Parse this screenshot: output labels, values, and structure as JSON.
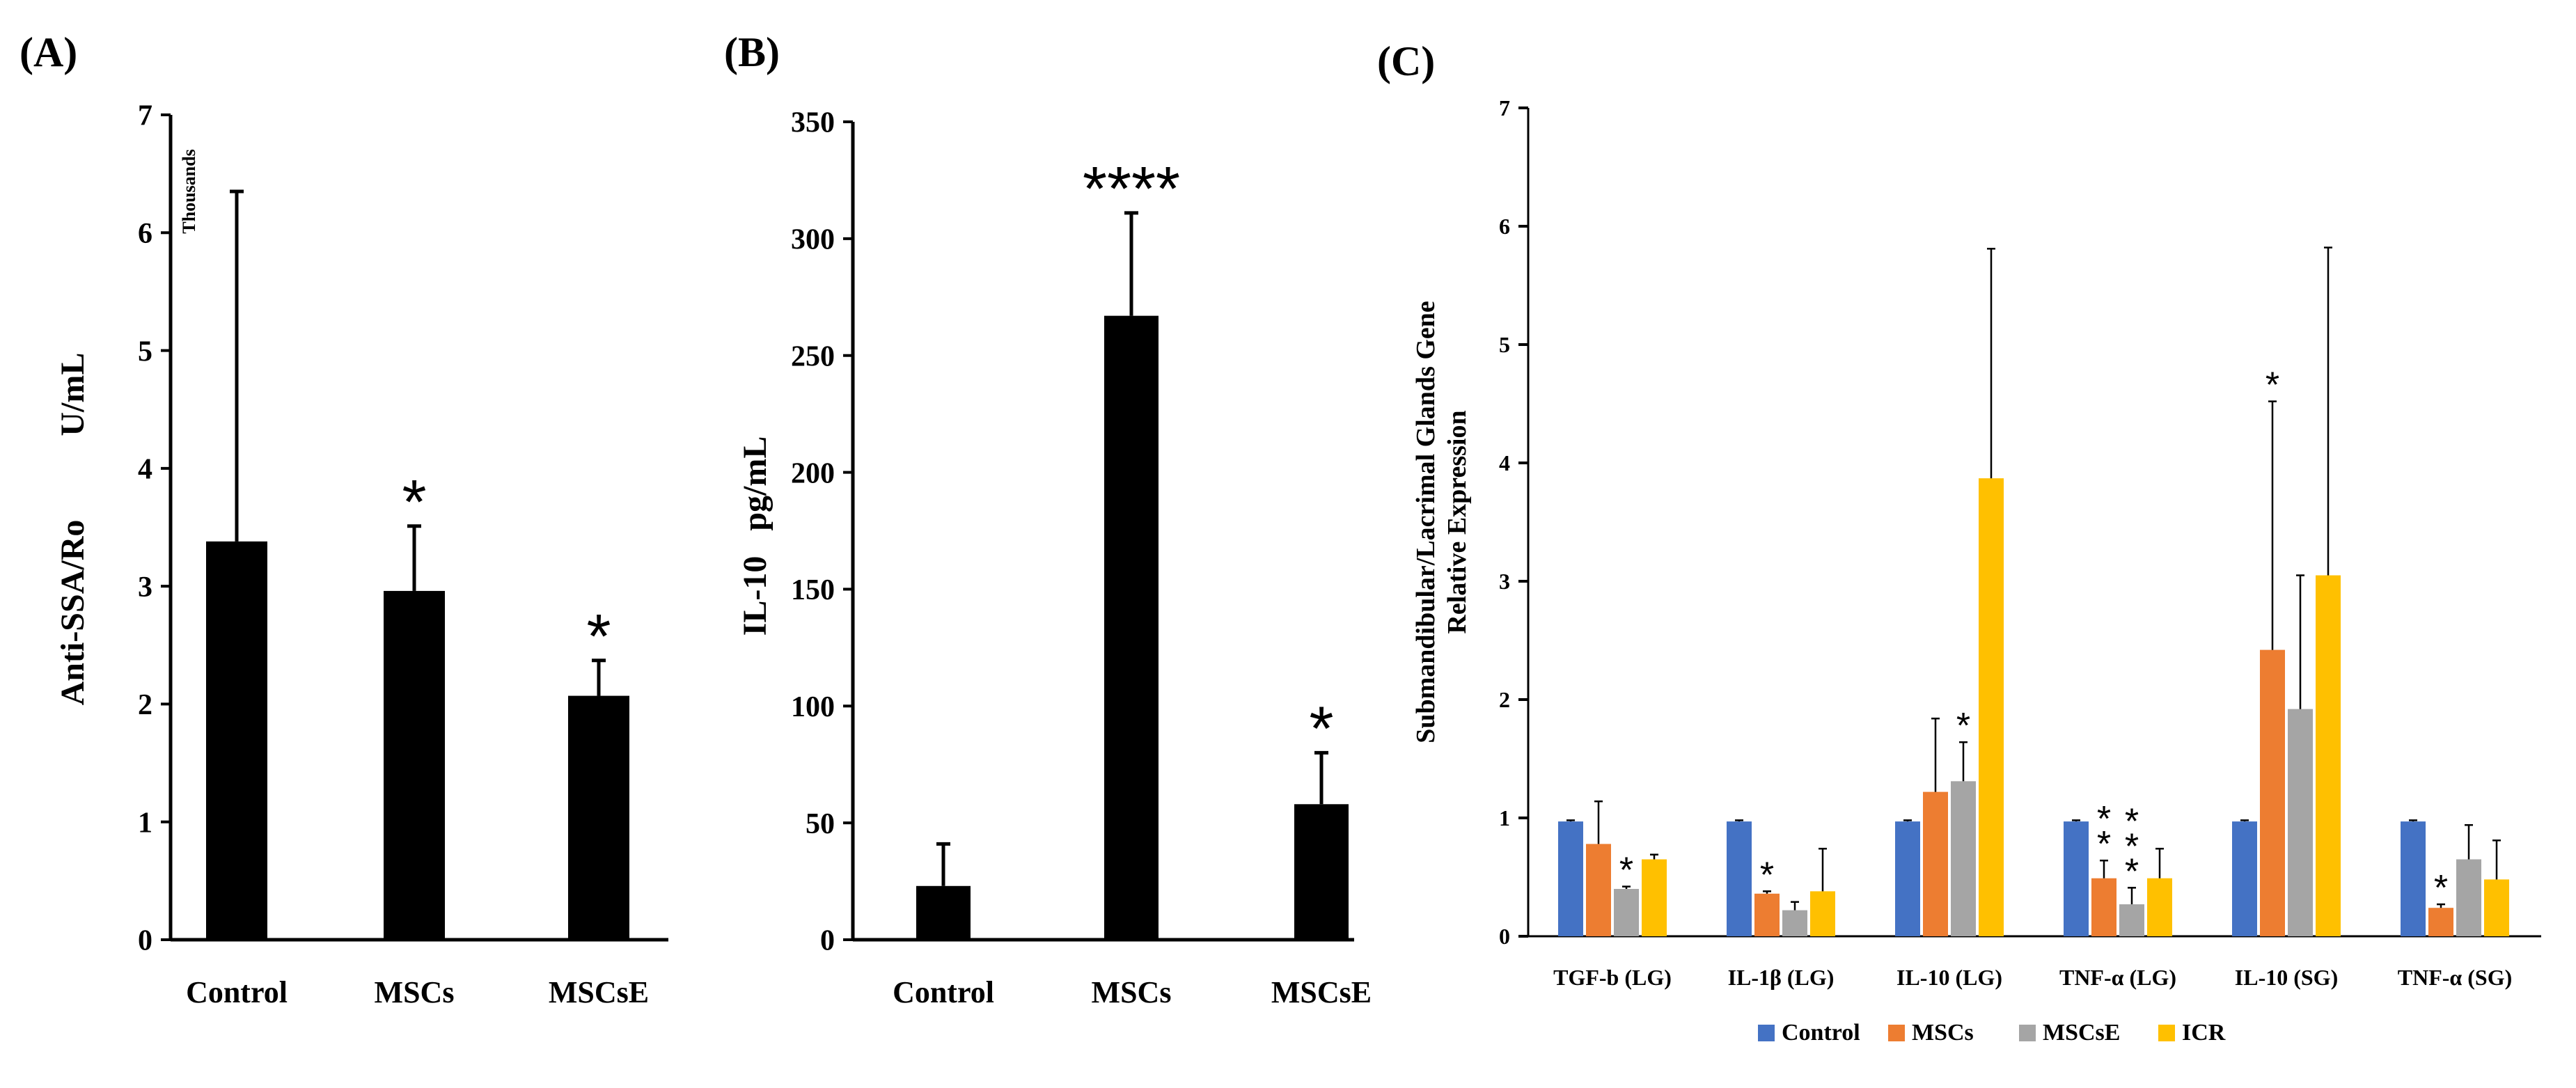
{
  "chart_data": [
    {
      "panel_label": "(A)",
      "type": "bar",
      "categories": [
        "Control",
        "MSCs",
        "MSCsE"
      ],
      "values": [
        3.38,
        2.96,
        2.07
      ],
      "errors": [
        2.97,
        0.55,
        0.3
      ],
      "significance": [
        "",
        "*",
        "*"
      ],
      "ylabel": "Anti-SSA/Ro          U/mL",
      "y_unit_note": "Thousands",
      "ylim": [
        0,
        7
      ],
      "yticks": [
        0,
        1,
        2,
        3,
        4,
        5,
        6,
        7
      ],
      "bar_color": "#000000"
    },
    {
      "panel_label": "(B)",
      "type": "bar",
      "categories": [
        "Control",
        "MSCs",
        "MSCsE"
      ],
      "values": [
        23,
        267,
        58
      ],
      "errors": [
        18,
        44,
        22
      ],
      "significance": [
        "",
        "****",
        "*"
      ],
      "ylabel": "IL-10   pg/mL",
      "ylim": [
        0,
        350
      ],
      "yticks": [
        0,
        50,
        100,
        150,
        200,
        250,
        300,
        350
      ],
      "bar_color": "#000000"
    },
    {
      "panel_label": "(C)",
      "type": "bar",
      "categories": [
        "TGF-b (LG)",
        "IL-1β (LG)",
        "IL-10 (LG)",
        "TNF-α (LG)",
        "IL-10 (SG)",
        "TNF-α (SG)"
      ],
      "series": [
        {
          "name": "Control",
          "color": "#4472C4",
          "values": [
            0.97,
            0.97,
            0.97,
            0.97,
            0.97,
            0.97
          ],
          "errors": [
            0.01,
            0.01,
            0.01,
            0.01,
            0.01,
            0.01
          ]
        },
        {
          "name": "MSCs",
          "color": "#ED7D31",
          "values": [
            0.78,
            0.36,
            1.22,
            0.49,
            2.42,
            0.24
          ],
          "errors": [
            0.36,
            0.02,
            0.62,
            0.15,
            2.1,
            0.03
          ]
        },
        {
          "name": "MSCsE",
          "color": "#A5A5A5",
          "values": [
            0.4,
            0.22,
            1.31,
            0.27,
            1.92,
            0.65
          ],
          "errors": [
            0.02,
            0.07,
            0.33,
            0.14,
            1.13,
            0.29
          ]
        },
        {
          "name": "ICR",
          "color": "#FFC000",
          "values": [
            0.65,
            0.38,
            3.87,
            0.49,
            3.05,
            0.48
          ],
          "errors": [
            0.04,
            0.36,
            1.94,
            0.25,
            2.77,
            0.33
          ]
        }
      ],
      "significance": [
        {
          "category": 0,
          "series": 2,
          "text": "*"
        },
        {
          "category": 1,
          "series": 1,
          "text": "*"
        },
        {
          "category": 2,
          "series": 2,
          "text": "*"
        },
        {
          "category": 3,
          "series": 1,
          "text": "**"
        },
        {
          "category": 3,
          "series": 2,
          "text": "***"
        },
        {
          "category": 4,
          "series": 1,
          "text": "*"
        },
        {
          "category": 5,
          "series": 1,
          "text": "*"
        }
      ],
      "ylabel_line1": "Submandibular/Lacrimal Glands Gene",
      "ylabel_line2": "Relative Expression",
      "ylim": [
        0,
        7
      ],
      "yticks": [
        0,
        1,
        2,
        3,
        4,
        5,
        6,
        7
      ],
      "legend": [
        "Control",
        "MSCs",
        "MSCsE",
        "ICR"
      ],
      "legend_position": "bottom"
    }
  ]
}
